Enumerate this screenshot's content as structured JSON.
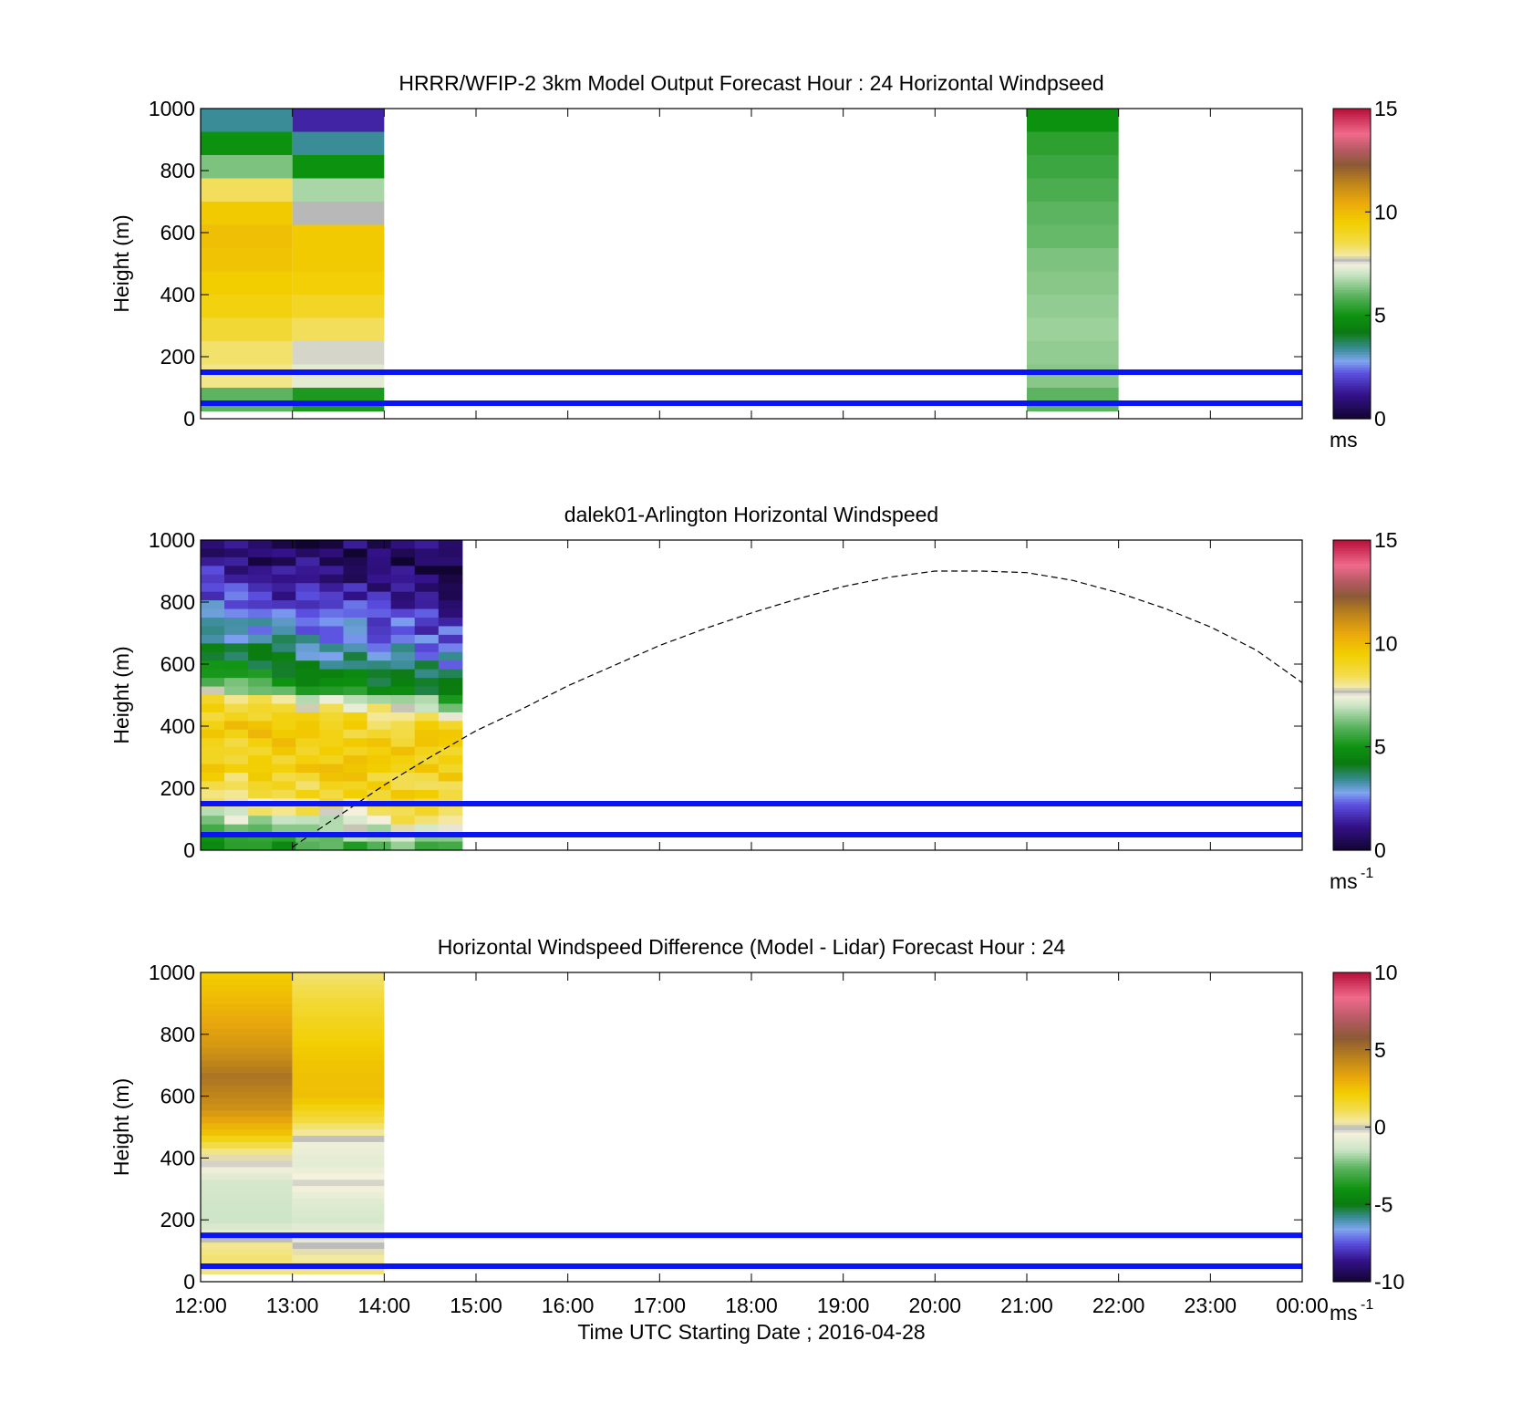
{
  "x_axis": {
    "label": "Time UTC  Starting Date ; 2016-04-28",
    "ticks": [
      12,
      13,
      14,
      15,
      16,
      17,
      18,
      19,
      20,
      21,
      22,
      23,
      24
    ],
    "tick_labels": [
      "12:00",
      "13:00",
      "14:00",
      "15:00",
      "16:00",
      "17:00",
      "18:00",
      "19:00",
      "20:00",
      "21:00",
      "22:00",
      "23:00",
      "00:00"
    ]
  },
  "chart_data": [
    {
      "type": "heatmap",
      "title": "HRRR/WFIP-2 3km Model Output   Forecast Hour : 24 Horizontal Windpseed",
      "ylabel": "Height (m)",
      "xlim": [
        12,
        24
      ],
      "ylim": [
        0,
        1000
      ],
      "yticks": [
        0,
        200,
        400,
        600,
        800,
        1000
      ],
      "colorbar": {
        "label": "ms",
        "superscript": "",
        "range": [
          0,
          15
        ],
        "ticks": [
          0,
          5,
          10,
          15
        ]
      },
      "reference_lines_m": [
        150,
        50
      ],
      "columns": [
        {
          "t0": 12,
          "t1": 13,
          "y_top": 1000,
          "y_bottom": 25,
          "values": [
            3.4,
            5.0,
            6.3,
            8.4,
            9.6,
            9.9,
            9.8,
            9.5,
            9.3,
            8.8,
            8.3,
            8.1,
            6.0
          ]
        },
        {
          "t0": 13,
          "t1": 14,
          "y_top": 1000,
          "y_bottom": 25,
          "values": [
            1.5,
            3.4,
            5.0,
            6.7,
            7.7,
            9.6,
            9.6,
            9.4,
            9.0,
            8.4,
            7.6,
            7.3,
            5.2
          ]
        },
        {
          "t0": 21,
          "t1": 22,
          "y_top": 1000,
          "y_bottom": 25,
          "values": [
            5.0,
            5.4,
            5.6,
            5.8,
            6.0,
            6.1,
            6.3,
            6.4,
            6.5,
            6.6,
            6.5,
            6.4,
            6.0
          ]
        }
      ]
    },
    {
      "type": "heatmap",
      "title": "dalek01-Arlington  Horizontal Windspeed",
      "ylabel": "Height (m)",
      "xlim": [
        12,
        24
      ],
      "ylim": [
        0,
        1000
      ],
      "yticks": [
        0,
        200,
        400,
        600,
        800,
        1000
      ],
      "colorbar": {
        "label": "ms",
        "superscript": "-1",
        "range": [
          0,
          15
        ],
        "ticks": [
          0,
          5,
          10,
          15
        ]
      },
      "reference_lines_m": [
        150,
        50
      ],
      "time_range": [
        12,
        14.85
      ],
      "height_levels": 36,
      "profile": [
        [
          1000,
          0.6
        ],
        [
          880,
          1.6
        ],
        [
          800,
          2.4
        ],
        [
          720,
          3.0
        ],
        [
          660,
          4.0
        ],
        [
          600,
          5.0
        ],
        [
          540,
          6.4
        ],
        [
          500,
          8.2
        ],
        [
          440,
          9.3
        ],
        [
          320,
          9.4
        ],
        [
          220,
          8.8
        ],
        [
          150,
          7.8
        ],
        [
          100,
          6.8
        ],
        [
          40,
          5.0
        ],
        [
          10,
          4.6
        ]
      ],
      "profile_shift_per_hour_m": 45,
      "noise_ms": 0.8,
      "curve": {
        "style": "dashed",
        "points": [
          [
            13.0,
            10
          ],
          [
            13.5,
            110
          ],
          [
            14.0,
            210
          ],
          [
            14.5,
            300
          ],
          [
            15.0,
            385
          ],
          [
            15.5,
            455
          ],
          [
            16.0,
            530
          ],
          [
            16.5,
            595
          ],
          [
            17.0,
            660
          ],
          [
            17.5,
            715
          ],
          [
            18.0,
            765
          ],
          [
            18.5,
            810
          ],
          [
            19.0,
            850
          ],
          [
            19.5,
            880
          ],
          [
            20.0,
            900
          ],
          [
            20.5,
            900
          ],
          [
            21.0,
            895
          ],
          [
            21.5,
            870
          ],
          [
            22.0,
            830
          ],
          [
            22.5,
            780
          ],
          [
            23.0,
            720
          ],
          [
            23.5,
            645
          ],
          [
            24.0,
            540
          ]
        ]
      }
    },
    {
      "type": "heatmap",
      "title": "Horizontal Windspeed Difference (Model - Lidar) Forecast Hour : 24",
      "ylabel": "Height (m)",
      "xlabel": "Time UTC  Starting Date ; 2016-04-28",
      "xlim": [
        12,
        24
      ],
      "ylim": [
        0,
        1000
      ],
      "yticks": [
        0,
        200,
        400,
        600,
        800,
        1000
      ],
      "colorbar": {
        "label": "ms",
        "superscript": "-1",
        "range": [
          -10,
          10
        ],
        "ticks": [
          -10,
          -5,
          0,
          5,
          10
        ]
      },
      "reference_lines_m": [
        150,
        50
      ],
      "columns": [
        {
          "t0": 12,
          "t1": 13,
          "y_top": 1000,
          "y_bottom": 25,
          "profile": [
            [
              1000,
              2.2
            ],
            [
              900,
              2.8
            ],
            [
              760,
              3.8
            ],
            [
              660,
              5.0
            ],
            [
              560,
              4.0
            ],
            [
              480,
              2.5
            ],
            [
              420,
              0.6
            ],
            [
              380,
              -0.2
            ],
            [
              320,
              -1.2
            ],
            [
              260,
              -1.3
            ],
            [
              200,
              -1.4
            ],
            [
              160,
              -0.8
            ],
            [
              120,
              0.5
            ],
            [
              80,
              0.8
            ],
            [
              40,
              0.7
            ]
          ]
        },
        {
          "t0": 13,
          "t1": 14,
          "y_top": 1000,
          "y_bottom": 25,
          "profile": [
            [
              1000,
              0.8
            ],
            [
              900,
              1.5
            ],
            [
              800,
              2.0
            ],
            [
              700,
              2.5
            ],
            [
              600,
              2.6
            ],
            [
              520,
              1.3
            ],
            [
              480,
              0.4
            ],
            [
              440,
              -0.6
            ],
            [
              380,
              -0.8
            ],
            [
              320,
              -0.2
            ],
            [
              260,
              -0.9
            ],
            [
              200,
              -1.2
            ],
            [
              150,
              -0.5
            ],
            [
              100,
              0.2
            ],
            [
              60,
              0.5
            ],
            [
              30,
              0.8
            ]
          ]
        }
      ]
    }
  ]
}
